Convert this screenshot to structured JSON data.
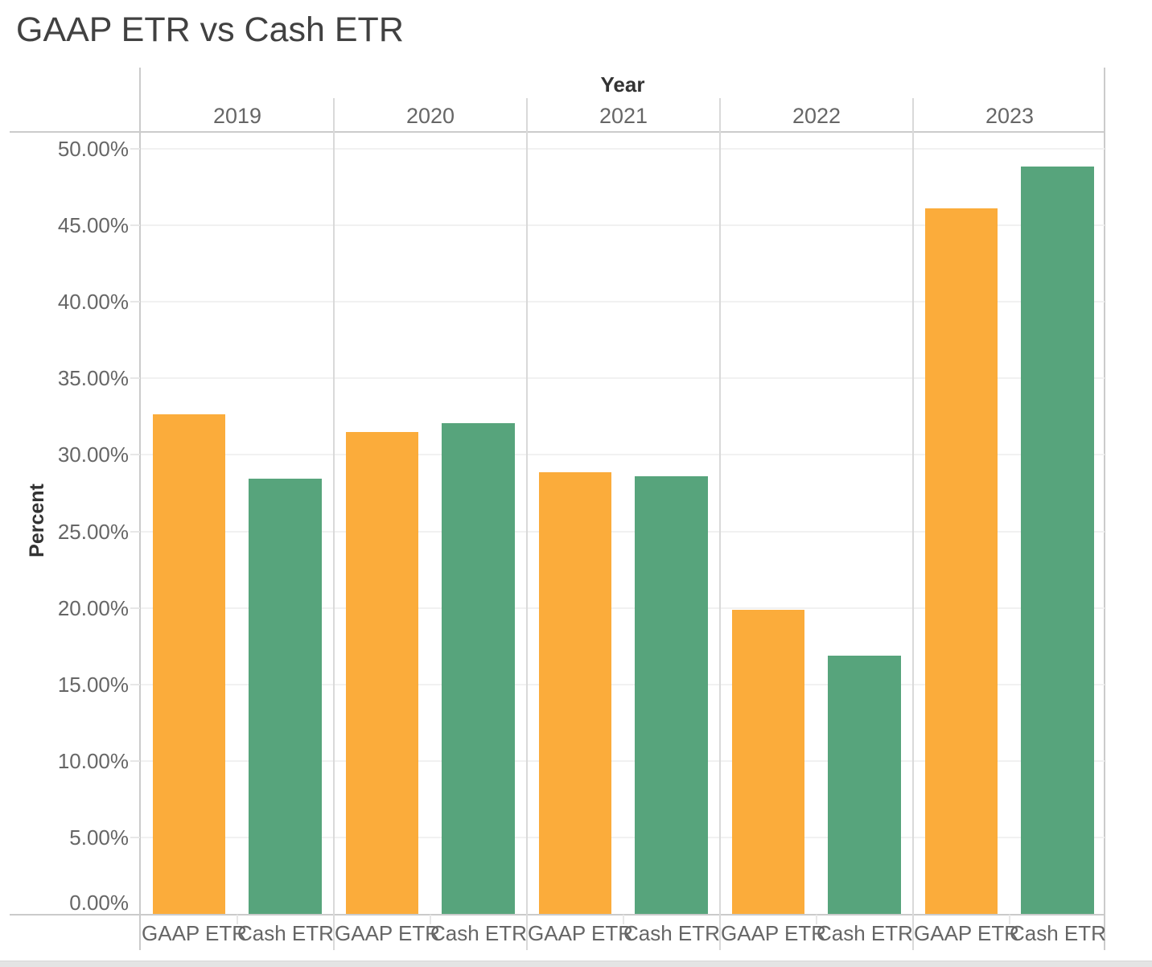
{
  "chart_data": {
    "type": "bar",
    "title": "GAAP ETR vs Cash ETR",
    "panel_header": "Year",
    "xlabel": "Year",
    "ylabel": "Percent",
    "categories": [
      "2019",
      "2020",
      "2021",
      "2022",
      "2023"
    ],
    "bar_labels": [
      "GAAP ETR",
      "Cash ETR"
    ],
    "series": [
      {
        "name": "GAAP ETR",
        "color": "#FBAC3B",
        "values": [
          32.65,
          31.5,
          28.85,
          19.85,
          46.1
        ]
      },
      {
        "name": "Cash ETR",
        "color": "#57A47C",
        "values": [
          28.45,
          32.05,
          28.6,
          16.9,
          48.85
        ]
      }
    ],
    "ylim": [
      0,
      50
    ],
    "ytick_step": 5,
    "ytick_labels": [
      "0.00%",
      "5.00%",
      "10.00%",
      "15.00%",
      "20.00%",
      "25.00%",
      "30.00%",
      "35.00%",
      "40.00%",
      "45.00%",
      "50.00%"
    ],
    "grid": true,
    "legend": "none"
  },
  "colors": {
    "gaap_bar": "#FBAC3B",
    "cash_bar": "#57A47C",
    "gridline": "#F1F1F1",
    "axis_line": "#CBCBCB",
    "panel_divider": "#D9D9D9",
    "tick": "#E7E7E7",
    "label_gray": "#666666",
    "header_text": "#333333",
    "title_text": "#414141",
    "scrollbar_track": "#E4E4E4",
    "background": "#FFFFFF"
  }
}
